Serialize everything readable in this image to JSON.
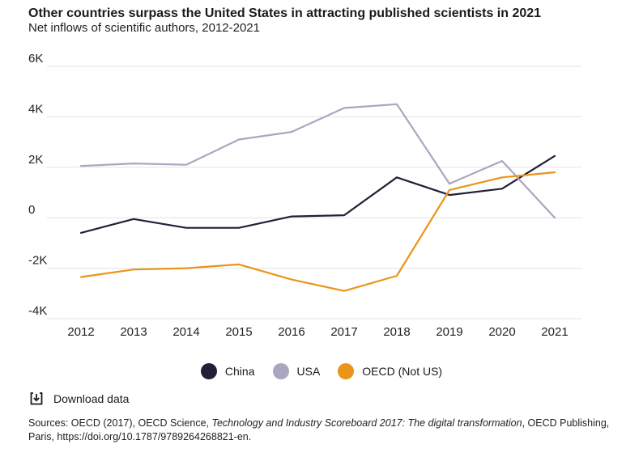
{
  "header": {
    "title": "Other countries surpass the United States in attracting published scientists in 2021",
    "subtitle": "Net inflows of scientific authors, 2012-2021"
  },
  "chart_data": {
    "type": "line",
    "x": [
      2012,
      2013,
      2014,
      2015,
      2016,
      2017,
      2018,
      2019,
      2020,
      2021
    ],
    "x_tick_labels": [
      "2012",
      "2013",
      "2014",
      "2015",
      "2016",
      "2017",
      "2018",
      "2019",
      "2020",
      "2021"
    ],
    "y_ticks": [
      6000,
      4000,
      2000,
      0,
      -2000,
      -4000
    ],
    "y_tick_labels": [
      "6K",
      "4K",
      "2K",
      "0",
      "-2K",
      "-4K"
    ],
    "ylim": [
      -4000,
      6000
    ],
    "grid": true,
    "legend_position": "bottom",
    "series": [
      {
        "name": "China",
        "color": "#231f36",
        "values": [
          -600,
          -50,
          -400,
          -400,
          50,
          100,
          1600,
          900,
          1150,
          2450
        ]
      },
      {
        "name": "USA",
        "color": "#aaa6bf",
        "values": [
          2050,
          2150,
          2100,
          3100,
          3400,
          4350,
          4500,
          1350,
          2250,
          0
        ]
      },
      {
        "name": "OECD (Not US)",
        "color": "#ea9418",
        "values": [
          -2350,
          -2050,
          -2000,
          -1850,
          -2450,
          -2900,
          -2300,
          1100,
          1600,
          1800
        ]
      }
    ]
  },
  "footer": {
    "download_label": "Download data",
    "source_prefix": "Sources: OECD (2017), OECD Science, ",
    "source_italic": "Technology and Industry Scoreboard 2017: The digital transformation",
    "source_suffix": ", OECD Publishing, Paris, https://doi.org/10.1787/9789264268821-en."
  }
}
